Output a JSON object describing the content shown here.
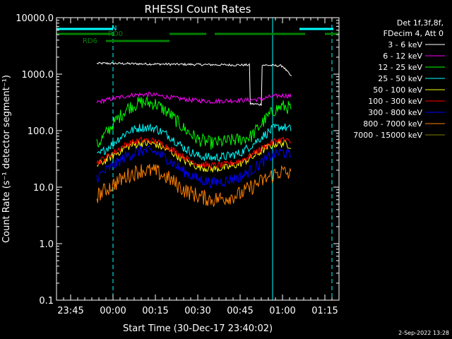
{
  "chart_data": {
    "type": "line",
    "title": "RHESSI Count Rates",
    "xlabel": "Start Time (30-Dec-17 23:40:02)",
    "ylabel": "Count Rate (s⁻¹ detector segment⁻¹)",
    "x_unit": "minutes after 23:40:02",
    "xlim": [
      0,
      100
    ],
    "ylim": [
      0.1,
      10000
    ],
    "yscale": "log",
    "x_ticks": [
      {
        "x": 5,
        "label": "23:45"
      },
      {
        "x": 20,
        "label": "00:00"
      },
      {
        "x": 35,
        "label": "00:15"
      },
      {
        "x": 50,
        "label": "00:30"
      },
      {
        "x": 65,
        "label": "00:45"
      },
      {
        "x": 80,
        "label": "01:00"
      },
      {
        "x": 95,
        "label": "01:15"
      }
    ],
    "y_ticks": [
      {
        "y": 0.1,
        "label": "0.1"
      },
      {
        "y": 1,
        "label": "1.0"
      },
      {
        "y": 10,
        "label": "10.0"
      },
      {
        "y": 100,
        "label": "100.0"
      },
      {
        "y": 1000,
        "label": "1000.0"
      },
      {
        "y": 10000,
        "label": "10000.0"
      }
    ],
    "legend": {
      "placement": "right",
      "header": [
        "Det 1f,3f,8f,",
        "FDecim 4, Att 0"
      ]
    },
    "series": [
      {
        "name": "3 - 6 keV",
        "color": "#ffffff",
        "points": [
          [
            14.3,
            1550
          ],
          [
            20,
            1550
          ],
          [
            30,
            1520
          ],
          [
            40,
            1500
          ],
          [
            50,
            1480
          ],
          [
            60,
            1460
          ],
          [
            68.3,
            1450
          ],
          [
            68.6,
            300
          ],
          [
            72.5,
            290
          ],
          [
            72.8,
            1450
          ],
          [
            80,
            1400
          ],
          [
            83.2,
            900
          ]
        ]
      },
      {
        "name": "6 - 12 keV",
        "color": "#ff00ff",
        "points": [
          [
            14.3,
            320
          ],
          [
            20,
            370
          ],
          [
            27,
            430
          ],
          [
            33,
            440
          ],
          [
            40,
            390
          ],
          [
            47,
            350
          ],
          [
            55,
            330
          ],
          [
            62,
            340
          ],
          [
            68,
            350
          ],
          [
            72,
            360
          ],
          [
            76,
            400
          ],
          [
            80,
            420
          ],
          [
            83,
            410
          ]
        ]
      },
      {
        "name": "12 - 25 keV",
        "color": "#00ff00",
        "points": [
          [
            14.3,
            55
          ],
          [
            20,
            130
          ],
          [
            25,
            250
          ],
          [
            30,
            320
          ],
          [
            35,
            300
          ],
          [
            40,
            200
          ],
          [
            45,
            110
          ],
          [
            50,
            70
          ],
          [
            55,
            60
          ],
          [
            60,
            65
          ],
          [
            65,
            70
          ],
          [
            69,
            80
          ],
          [
            73,
            140
          ],
          [
            77,
            230
          ],
          [
            80,
            270
          ],
          [
            83,
            250
          ]
        ]
      },
      {
        "name": "25 - 50 keV",
        "color": "#00ffff",
        "points": [
          [
            14.3,
            35
          ],
          [
            20,
            60
          ],
          [
            25,
            95
          ],
          [
            30,
            115
          ],
          [
            35,
            110
          ],
          [
            40,
            80
          ],
          [
            45,
            50
          ],
          [
            50,
            36
          ],
          [
            55,
            33
          ],
          [
            60,
            35
          ],
          [
            65,
            40
          ],
          [
            69,
            55
          ],
          [
            73,
            80
          ],
          [
            77,
            110
          ],
          [
            80,
            118
          ],
          [
            83,
            105
          ]
        ]
      },
      {
        "name": "50 - 100 keV",
        "color": "#ffff00",
        "points": [
          [
            14.3,
            24
          ],
          [
            20,
            36
          ],
          [
            25,
            52
          ],
          [
            30,
            60
          ],
          [
            35,
            58
          ],
          [
            40,
            44
          ],
          [
            45,
            30
          ],
          [
            50,
            23
          ],
          [
            55,
            21
          ],
          [
            60,
            22
          ],
          [
            65,
            26
          ],
          [
            69,
            33
          ],
          [
            73,
            45
          ],
          [
            77,
            58
          ],
          [
            80,
            60
          ],
          [
            83,
            55
          ]
        ]
      },
      {
        "name": "100 - 300 keV",
        "color": "#ff0000",
        "points": [
          [
            14.3,
            27
          ],
          [
            20,
            40
          ],
          [
            25,
            58
          ],
          [
            30,
            68
          ],
          [
            35,
            65
          ],
          [
            40,
            50
          ],
          [
            45,
            34
          ],
          [
            50,
            26
          ],
          [
            55,
            24
          ],
          [
            60,
            25
          ],
          [
            65,
            29
          ],
          [
            69,
            37
          ],
          [
            73,
            50
          ],
          [
            77,
            65
          ],
          [
            80,
            70
          ],
          [
            83,
            62
          ]
        ]
      },
      {
        "name": "300 - 800 keV",
        "color": "#0000ff",
        "points": [
          [
            14.3,
            15
          ],
          [
            20,
            24
          ],
          [
            25,
            36
          ],
          [
            30,
            44
          ],
          [
            35,
            42
          ],
          [
            40,
            30
          ],
          [
            45,
            19
          ],
          [
            50,
            14
          ],
          [
            55,
            12
          ],
          [
            60,
            13
          ],
          [
            65,
            15
          ],
          [
            69,
            20
          ],
          [
            73,
            28
          ],
          [
            77,
            38
          ],
          [
            80,
            42
          ],
          [
            83,
            36
          ]
        ]
      },
      {
        "name": "800 - 7000 keV",
        "color": "#ff8000",
        "points": [
          [
            14.3,
            7
          ],
          [
            20,
            11
          ],
          [
            25,
            16
          ],
          [
            30,
            20
          ],
          [
            35,
            19
          ],
          [
            40,
            14
          ],
          [
            45,
            9
          ],
          [
            50,
            7
          ],
          [
            55,
            6
          ],
          [
            60,
            6.5
          ],
          [
            65,
            7.5
          ],
          [
            69,
            10
          ],
          [
            73,
            13
          ],
          [
            77,
            17
          ],
          [
            80,
            19
          ],
          [
            83,
            16
          ]
        ]
      },
      {
        "name": "7000 - 15000 keV",
        "color": "#808000",
        "points": []
      }
    ],
    "annotations": [
      {
        "label": "N",
        "color": "#00ffff"
      },
      {
        "label": "RD0",
        "color": "#008000"
      },
      {
        "label": "RD6",
        "color": "#008000"
      }
    ],
    "bands": {
      "night": {
        "color": "#00ffff",
        "segments": [
          [
            0,
            20
          ],
          [
            86,
            98
          ]
        ]
      },
      "rd0": {
        "color": "#008000",
        "segments": [
          [
            0,
            20
          ],
          [
            40,
            53
          ],
          [
            56,
            88
          ],
          [
            95,
            100
          ]
        ]
      },
      "rd6": {
        "color": "#008000",
        "segments": [
          [
            17.5,
            40
          ]
        ]
      }
    },
    "vlines": [
      {
        "x": 0,
        "color": "#00ffff",
        "style": "solid"
      },
      {
        "x": 20,
        "color": "#00ffff",
        "style": "dashed"
      },
      {
        "x": 76.5,
        "color": "#00ffff",
        "style": "solid"
      },
      {
        "x": 97.5,
        "color": "#00ffff",
        "style": "dashed"
      }
    ]
  },
  "footer": {
    "date": "2-Sep-2022 13:28"
  }
}
